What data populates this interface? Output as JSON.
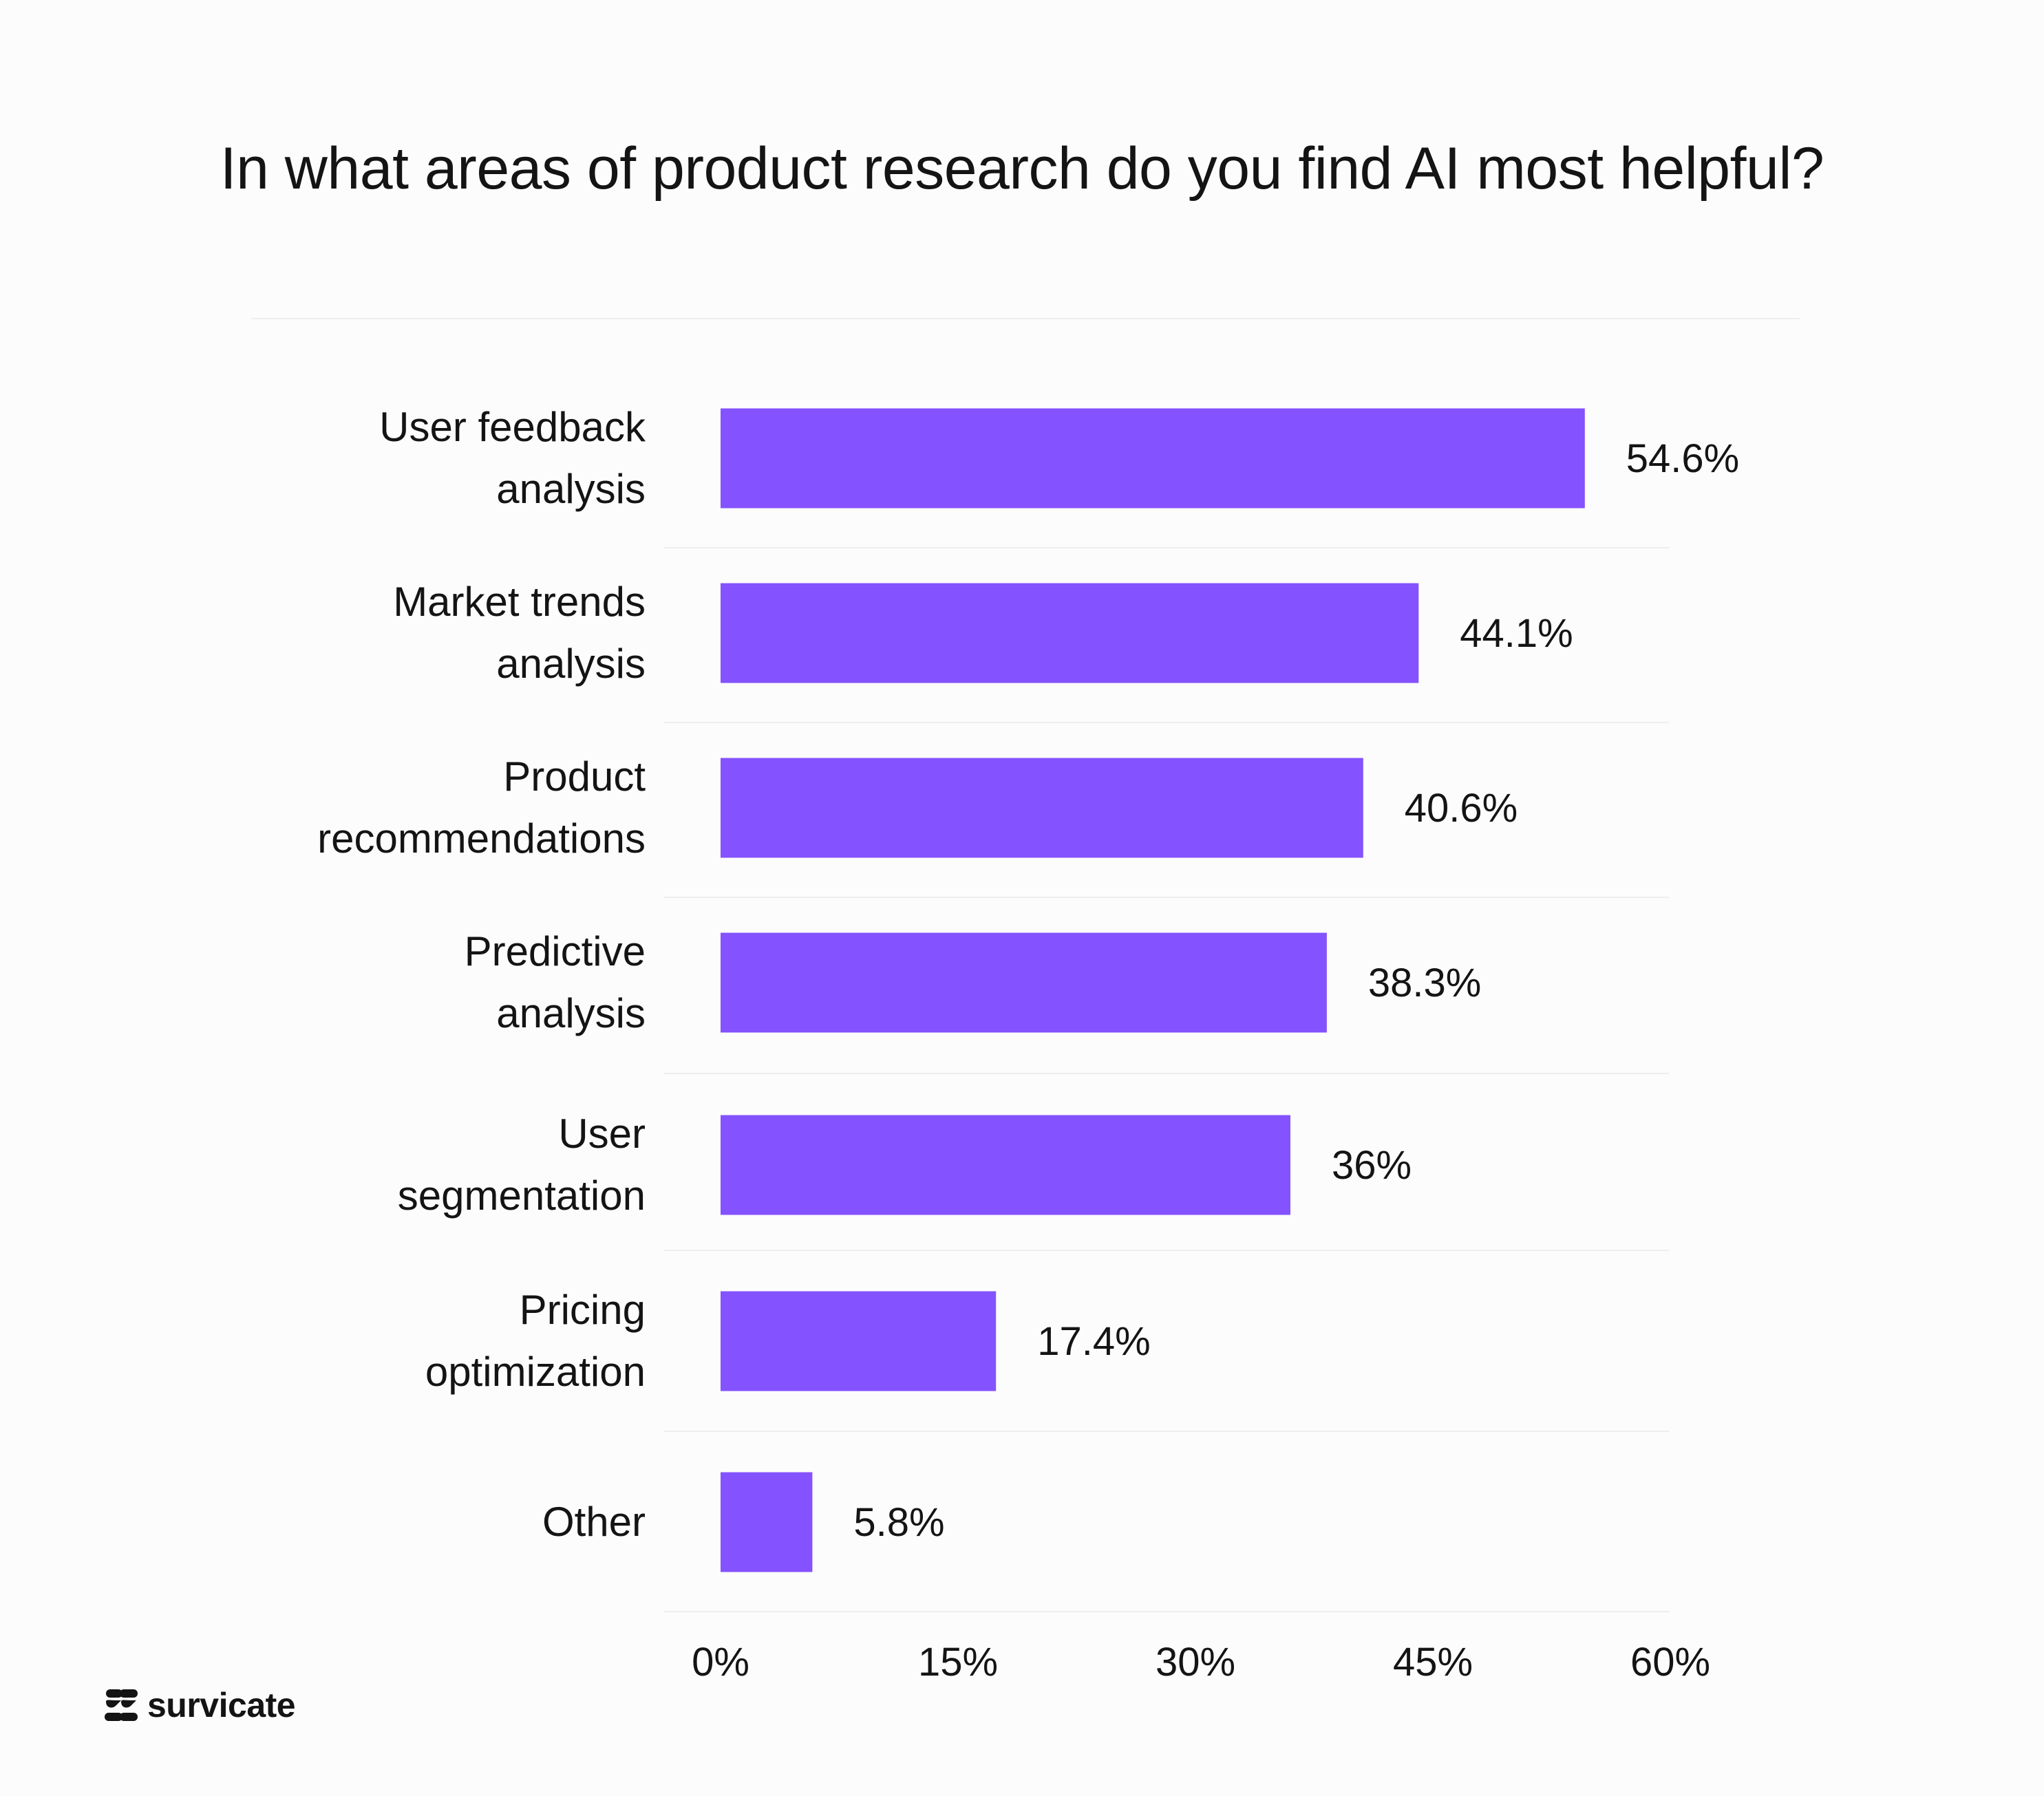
{
  "title": "In what areas of product research do you find AI most helpful?",
  "brand": {
    "name": "survicate",
    "icon": "survicate-logo-icon"
  },
  "colors": {
    "bar": "#8452FE",
    "text": "#141414",
    "grid": "#eeeeee",
    "background": "#fcfcfc"
  },
  "chart_data": {
    "type": "bar",
    "orientation": "horizontal",
    "title": "In what areas of product research do you find AI most helpful?",
    "categories": [
      [
        "User feedback",
        "analysis"
      ],
      [
        "Market trends",
        "analysis"
      ],
      [
        "Product",
        "recommendations"
      ],
      [
        "Predictive",
        "analysis"
      ],
      [
        "User",
        "segmentation"
      ],
      [
        "Pricing",
        "optimization"
      ],
      [
        "Other"
      ]
    ],
    "values": [
      54.6,
      44.1,
      40.6,
      38.3,
      36,
      17.4,
      5.8
    ],
    "value_labels": [
      "54.6%",
      "44.1%",
      "40.6%",
      "38.3%",
      "36%",
      "17.4%",
      "5.8%"
    ],
    "x_ticks": [
      0,
      15,
      30,
      45,
      60
    ],
    "x_tick_labels": [
      "0%",
      "15%",
      "30%",
      "45%",
      "60%"
    ],
    "xlim": [
      0,
      60
    ],
    "xlabel": "",
    "ylabel": "",
    "grid": false,
    "legend": "none"
  }
}
